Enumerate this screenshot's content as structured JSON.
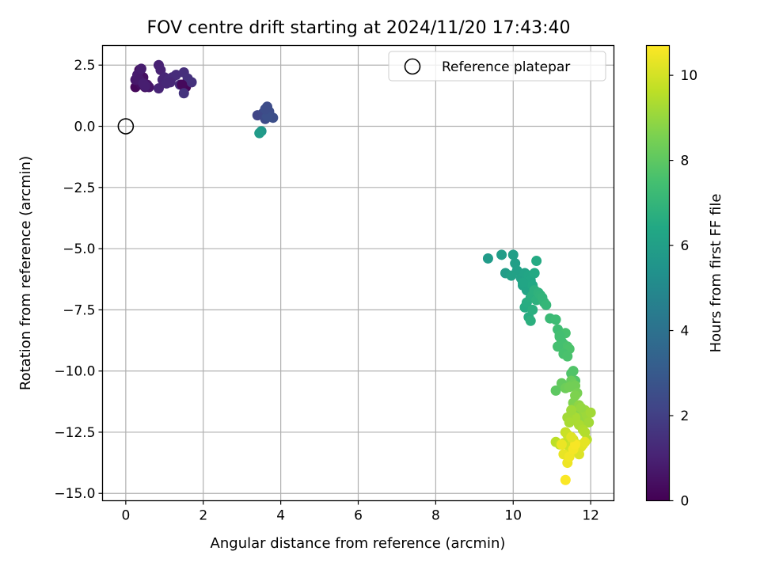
{
  "chart_data": {
    "type": "scatter",
    "title": "FOV centre drift starting at 2024/11/20 17:43:40",
    "xlabel": "Angular distance from reference (arcmin)",
    "ylabel": "Rotation from reference (arcmin)",
    "xlim": [
      -0.6,
      12.6
    ],
    "ylim": [
      -15.3,
      3.3
    ],
    "xticks": [
      0,
      2,
      4,
      6,
      8,
      10,
      12
    ],
    "xtick_labels": [
      "0",
      "2",
      "4",
      "6",
      "8",
      "10",
      "12"
    ],
    "yticks": [
      2.5,
      0.0,
      -2.5,
      -5.0,
      -7.5,
      -10.0,
      -12.5,
      -15.0
    ],
    "ytick_labels": [
      "2.5",
      "0.0",
      "−2.5",
      "−5.0",
      "−7.5",
      "−10.0",
      "−12.5",
      "−15.0"
    ],
    "grid": true,
    "legend": {
      "placement": "top-right",
      "entries": [
        "Reference platepar"
      ]
    },
    "reference_point": {
      "x": 0.0,
      "y": 0.0,
      "marker": "hollow-circle"
    },
    "colorbar": {
      "label": "Hours from first FF file",
      "colormap": "viridis",
      "range": [
        0,
        10.7
      ],
      "ticks": [
        0,
        2,
        4,
        6,
        8,
        10
      ],
      "tick_labels": [
        "0",
        "2",
        "4",
        "6",
        "8",
        "10"
      ]
    },
    "series": [
      {
        "x": [
          0.25,
          0.3,
          0.35,
          0.4,
          0.45,
          0.5,
          0.55,
          0.6,
          0.25,
          0.3,
          0.4,
          0.5,
          0.85,
          0.9,
          0.95,
          1.0,
          1.05,
          1.1,
          1.2,
          1.3,
          1.4,
          1.5,
          1.55,
          1.6,
          1.7,
          1.45,
          1.5,
          0.85,
          1.15,
          0.35,
          0.45
        ],
        "y": [
          1.6,
          2.0,
          2.3,
          1.7,
          2.0,
          1.6,
          1.7,
          1.6,
          1.9,
          2.1,
          2.35,
          1.65,
          2.5,
          2.3,
          1.9,
          2.0,
          1.75,
          1.9,
          2.0,
          2.1,
          1.7,
          2.2,
          1.6,
          1.95,
          1.8,
          1.7,
          1.35,
          1.55,
          1.8,
          1.9,
          1.75
        ],
        "c": [
          0.2,
          0.3,
          0.35,
          0.4,
          0.45,
          0.55,
          0.6,
          0.65,
          0.7,
          0.8,
          0.85,
          0.9,
          1.0,
          1.05,
          1.1,
          1.15,
          1.2,
          1.25,
          1.3,
          1.35,
          1.4,
          1.45,
          0.15,
          1.5,
          1.55,
          0.25,
          1.6,
          1.1,
          1.2,
          0.75,
          0.9
        ]
      },
      {
        "x": [
          3.4,
          3.55,
          3.6,
          3.65,
          3.7,
          3.8,
          3.65,
          3.6,
          3.5,
          3.45
        ],
        "y": [
          0.45,
          0.55,
          0.3,
          0.8,
          0.6,
          0.35,
          0.4,
          0.7,
          -0.2,
          -0.28
        ],
        "c": [
          2.2,
          2.3,
          2.4,
          2.45,
          2.5,
          2.55,
          2.6,
          2.5,
          5.6,
          5.8
        ]
      },
      {
        "x": [
          9.35,
          9.7,
          9.8,
          10.0,
          10.05,
          10.1,
          9.95,
          10.2,
          10.25,
          10.3,
          10.35,
          10.4,
          10.45,
          10.5,
          10.55,
          10.6,
          10.3,
          10.35,
          10.45,
          10.5,
          10.55,
          10.6,
          10.65,
          10.7,
          10.75,
          10.8,
          10.85,
          10.4,
          10.5,
          10.45,
          10.25
        ],
        "y": [
          -5.4,
          -5.25,
          -6.0,
          -5.25,
          -5.6,
          -5.9,
          -6.1,
          -6.2,
          -6.5,
          -6.0,
          -6.7,
          -6.1,
          -6.3,
          -6.5,
          -6.0,
          -5.5,
          -7.4,
          -7.2,
          -7.0,
          -6.9,
          -6.7,
          -7.1,
          -6.8,
          -6.9,
          -7.0,
          -7.2,
          -7.3,
          -7.8,
          -7.5,
          -7.95,
          -6.4
        ],
        "c": [
          5.8,
          5.9,
          5.9,
          6.0,
          6.0,
          6.05,
          6.1,
          6.1,
          6.15,
          6.2,
          6.25,
          6.3,
          6.35,
          6.4,
          6.45,
          6.5,
          6.55,
          6.6,
          6.65,
          6.7,
          6.75,
          6.8,
          6.85,
          6.9,
          6.95,
          7.0,
          7.05,
          6.6,
          6.7,
          6.75,
          6.3
        ]
      },
      {
        "x": [
          10.95,
          11.1,
          11.15,
          11.2,
          11.25,
          11.3,
          11.35,
          11.4,
          11.45,
          11.5,
          11.55,
          11.6,
          11.15,
          11.3,
          11.4,
          11.2,
          11.5,
          11.55,
          11.6,
          11.65,
          11.1,
          11.25,
          11.35,
          11.45,
          11.6
        ],
        "y": [
          -7.85,
          -7.9,
          -8.3,
          -8.6,
          -8.8,
          -8.9,
          -8.45,
          -9.0,
          -9.1,
          -10.1,
          -10.0,
          -10.4,
          -9.0,
          -9.3,
          -9.4,
          -8.55,
          -10.4,
          -10.55,
          -10.6,
          -10.9,
          -10.8,
          -10.5,
          -10.7,
          -10.65,
          -11.0
        ],
        "c": [
          7.2,
          7.3,
          7.35,
          7.4,
          7.45,
          7.5,
          7.55,
          7.6,
          7.65,
          7.7,
          7.75,
          7.8,
          7.5,
          7.55,
          7.6,
          7.45,
          8.2,
          8.3,
          8.4,
          8.5,
          8.0,
          8.1,
          8.3,
          8.4,
          8.6
        ]
      },
      {
        "x": [
          11.55,
          11.6,
          11.65,
          11.7,
          11.75,
          11.8,
          11.85,
          11.9,
          11.95,
          12.0,
          11.5,
          11.6,
          11.7,
          11.75,
          11.8,
          11.85,
          11.9,
          11.4,
          11.45,
          11.5
        ],
        "y": [
          -11.3,
          -11.5,
          -11.7,
          -11.4,
          -11.9,
          -12.0,
          -11.6,
          -11.8,
          -12.1,
          -11.7,
          -12.0,
          -11.9,
          -12.2,
          -11.5,
          -12.4,
          -12.5,
          -12.8,
          -11.9,
          -12.1,
          -11.6
        ],
        "c": [
          8.6,
          8.7,
          8.8,
          8.9,
          9.0,
          9.0,
          9.1,
          9.1,
          9.2,
          9.2,
          9.3,
          9.3,
          9.35,
          9.0,
          9.4,
          9.45,
          9.5,
          9.2,
          9.3,
          9.15
        ]
      },
      {
        "x": [
          11.1,
          11.2,
          11.3,
          11.35,
          11.4,
          11.45,
          11.5,
          11.55,
          11.6,
          11.65,
          11.7,
          11.75,
          11.8,
          11.85,
          11.3,
          11.4,
          11.45,
          11.55,
          11.6,
          11.25,
          11.35,
          11.5
        ],
        "y": [
          -12.9,
          -13.0,
          -12.95,
          -12.5,
          -12.6,
          -13.1,
          -13.3,
          -12.8,
          -13.2,
          -13.0,
          -13.4,
          -13.1,
          -13.0,
          -12.9,
          -13.4,
          -13.75,
          -13.5,
          -13.2,
          -13.0,
          -13.0,
          -14.45,
          -12.7
        ],
        "c": [
          9.6,
          9.7,
          9.75,
          9.8,
          9.85,
          9.9,
          9.95,
          10.0,
          10.05,
          10.1,
          10.15,
          10.2,
          10.25,
          10.3,
          10.35,
          10.45,
          10.5,
          10.55,
          10.6,
          10.4,
          10.65,
          10.2
        ]
      }
    ]
  }
}
